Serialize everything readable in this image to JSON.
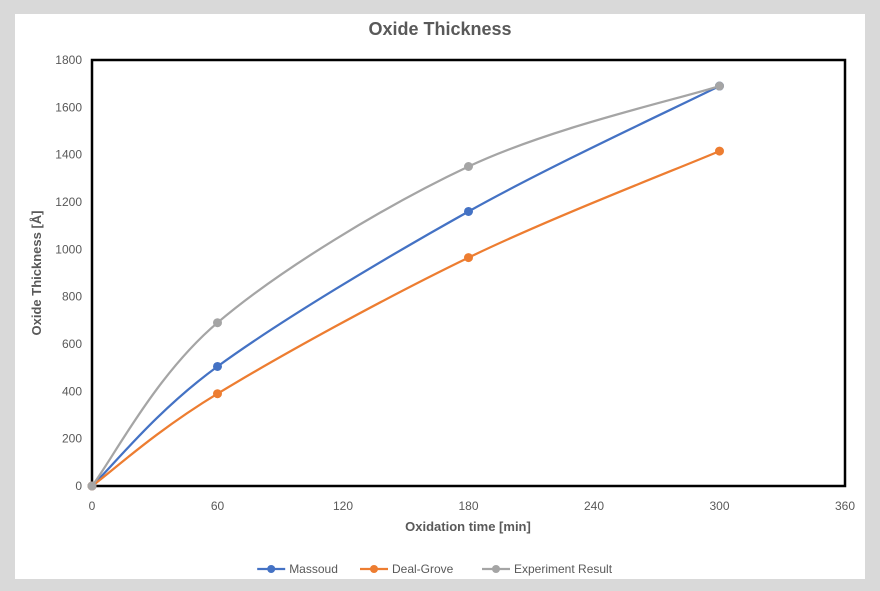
{
  "chart_data": {
    "type": "line",
    "title": "Oxide Thickness",
    "xlabel": "Oxidation time [min]",
    "ylabel": "Oxide Thickness [Å]",
    "xlim": [
      0,
      360
    ],
    "ylim": [
      0,
      1800
    ],
    "xticks": [
      0,
      60,
      120,
      180,
      240,
      300,
      360
    ],
    "yticks": [
      0,
      200,
      400,
      600,
      800,
      1000,
      1200,
      1400,
      1600,
      1800
    ],
    "grid": false,
    "smooth": true,
    "legend_position": "bottom",
    "x": [
      0,
      60,
      180,
      300
    ],
    "series": [
      {
        "name": "Massoud",
        "color": "#4472C4",
        "values": [
          0,
          505,
          1160,
          1690
        ]
      },
      {
        "name": "Deal-Grove",
        "color": "#ED7D31",
        "values": [
          0,
          390,
          965,
          1415
        ]
      },
      {
        "name": "Experiment Result",
        "color": "#A5A5A5",
        "values": [
          0,
          690,
          1350,
          1690
        ]
      }
    ]
  }
}
